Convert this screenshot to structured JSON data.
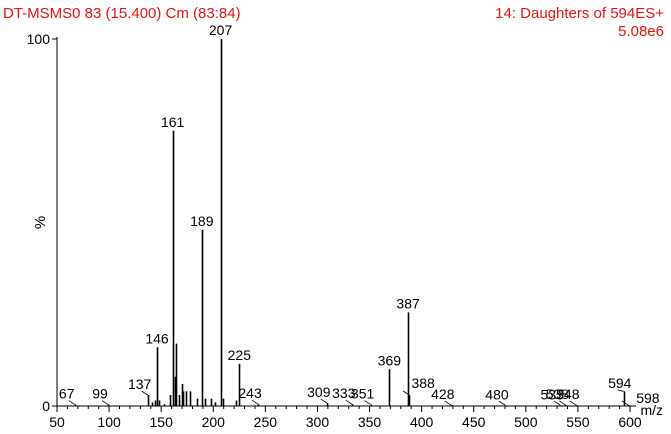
{
  "header": {
    "title_left": "DT-MSMS0 83 (15.400) Cm (83:84)",
    "title_right": "14: Daughters of 594ES+",
    "intensity": "5.08e6"
  },
  "colors": {
    "header_text": "#e8120c",
    "axis": "#000000",
    "peaks": "#000000",
    "labels": "#000000"
  },
  "chart_data": {
    "type": "bar",
    "subtype": "mass-spectrum-stick",
    "title": "DT-MSMS0 83 (15.400) Cm (83:84)",
    "subtitle": "14: Daughters of 594ES+",
    "base_peak_intensity": "5.08e6",
    "xlabel": "m/z",
    "ylabel": "%",
    "xlim": [
      50,
      600
    ],
    "ylim": [
      0,
      100
    ],
    "x_ticks": [
      50,
      100,
      150,
      200,
      250,
      300,
      350,
      400,
      450,
      500,
      550,
      600
    ],
    "x_tick_labels": [
      "50",
      "100",
      "150",
      "200",
      "250",
      "300",
      "350",
      "400",
      "450",
      "500",
      "550",
      "600"
    ],
    "y_ticks": [
      0,
      100
    ],
    "y_tick_labels": [
      "0",
      "100"
    ],
    "peaks": [
      {
        "x": 67,
        "y": 0.4
      },
      {
        "x": 99,
        "y": 0.4
      },
      {
        "x": 137,
        "y": 3
      },
      {
        "x": 141,
        "y": 1
      },
      {
        "x": 144,
        "y": 1.5
      },
      {
        "x": 146,
        "y": 16
      },
      {
        "x": 148,
        "y": 1.5
      },
      {
        "x": 153,
        "y": 0.5
      },
      {
        "x": 158,
        "y": 3
      },
      {
        "x": 161,
        "y": 75
      },
      {
        "x": 163,
        "y": 8
      },
      {
        "x": 164,
        "y": 17
      },
      {
        "x": 167,
        "y": 3
      },
      {
        "x": 170,
        "y": 6
      },
      {
        "x": 171,
        "y": 4
      },
      {
        "x": 174,
        "y": 4
      },
      {
        "x": 178,
        "y": 4
      },
      {
        "x": 184,
        "y": 2
      },
      {
        "x": 189,
        "y": 48
      },
      {
        "x": 192,
        "y": 2
      },
      {
        "x": 198,
        "y": 2
      },
      {
        "x": 202,
        "y": 1
      },
      {
        "x": 207,
        "y": 100
      },
      {
        "x": 209,
        "y": 2
      },
      {
        "x": 222,
        "y": 1.5
      },
      {
        "x": 225,
        "y": 11.5
      },
      {
        "x": 243,
        "y": 0.5
      },
      {
        "x": 309,
        "y": 0.8
      },
      {
        "x": 333,
        "y": 0.5
      },
      {
        "x": 351,
        "y": 0.4
      },
      {
        "x": 369,
        "y": 10
      },
      {
        "x": 387,
        "y": 25.5
      },
      {
        "x": 388,
        "y": 3
      },
      {
        "x": 428,
        "y": 0.3
      },
      {
        "x": 480,
        "y": 0.2
      },
      {
        "x": 533,
        "y": 0.2
      },
      {
        "x": 538,
        "y": 0.3
      },
      {
        "x": 548,
        "y": 0.3
      },
      {
        "x": 594,
        "y": 4
      },
      {
        "x": 598,
        "y": 0.3
      }
    ],
    "peak_labels": [
      {
        "text": "67",
        "x": 67,
        "y": 0.4
      },
      {
        "text": "99",
        "x": 99,
        "y": 0.4
      },
      {
        "text": "137",
        "x": 137,
        "y": 3
      },
      {
        "text": "146",
        "x": 146,
        "y": 16
      },
      {
        "text": "161",
        "x": 161,
        "y": 75
      },
      {
        "text": "189",
        "x": 189,
        "y": 48
      },
      {
        "text": "207",
        "x": 207,
        "y": 100
      },
      {
        "text": "225",
        "x": 225,
        "y": 11.5
      },
      {
        "text": "243",
        "x": 243,
        "y": 0.5
      },
      {
        "text": "309",
        "x": 309,
        "y": 0.8
      },
      {
        "text": "333",
        "x": 333,
        "y": 0.5
      },
      {
        "text": "351",
        "x": 351,
        "y": 0.4
      },
      {
        "text": "369",
        "x": 369,
        "y": 10
      },
      {
        "text": "387",
        "x": 387,
        "y": 25.5
      },
      {
        "text": "388",
        "x": 388,
        "y": 3
      },
      {
        "text": "428",
        "x": 428,
        "y": 0.3
      },
      {
        "text": "480",
        "x": 480,
        "y": 0.2
      },
      {
        "text": "533",
        "x": 533,
        "y": 0.2
      },
      {
        "text": "538",
        "x": 538,
        "y": 0.3
      },
      {
        "text": "548",
        "x": 548,
        "y": 0.3
      },
      {
        "text": "594",
        "x": 594,
        "y": 4
      },
      {
        "text": "598",
        "x": 598,
        "y": 0.3
      }
    ],
    "grid": false,
    "legend": "none"
  }
}
